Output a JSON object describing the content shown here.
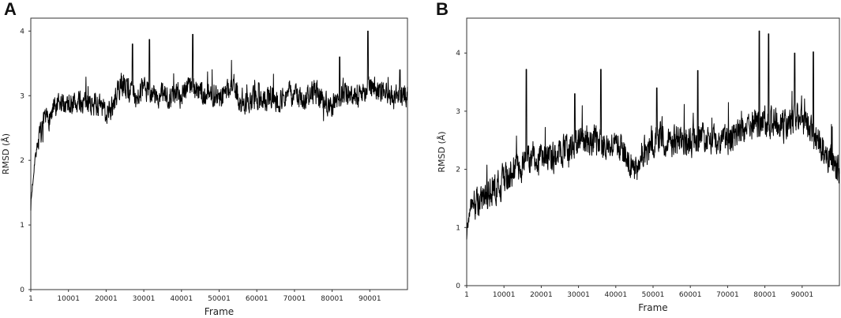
{
  "chart_data": [
    {
      "panel": "A",
      "type": "line",
      "xlabel": "Frame",
      "ylabel": "RMSD (Å)",
      "xlim": [
        1,
        100001
      ],
      "ylim": [
        0,
        4.2
      ],
      "xticks": [
        1,
        10001,
        20001,
        30001,
        40001,
        50001,
        60001,
        70001,
        80001,
        90001
      ],
      "xtick_labels": [
        "1",
        "10001",
        "20001",
        "30001",
        "40001",
        "50001",
        "60001",
        "70001",
        "80001",
        "90001"
      ],
      "yticks": [
        0,
        1,
        2,
        3,
        4
      ],
      "ytick_labels": [
        "0",
        "1",
        "2",
        "3",
        "4"
      ],
      "grid": false,
      "series": [
        {
          "color": "#000000",
          "x": [
            1,
            1000,
            2000,
            4000,
            6000,
            8000,
            10001,
            12000,
            15000,
            18000,
            20001,
            22000,
            24000,
            26000,
            28000,
            30001,
            32000,
            34000,
            36000,
            38000,
            40001,
            42000,
            44000,
            46000,
            48000,
            50001,
            52000,
            54000,
            56000,
            58000,
            60001,
            62000,
            64000,
            66000,
            68000,
            70001,
            72000,
            74000,
            76000,
            78000,
            80001,
            82000,
            84000,
            86000,
            88000,
            90001,
            92000,
            94000,
            96000,
            98000,
            100001
          ],
          "values": [
            1.3,
            2.0,
            2.3,
            2.6,
            2.75,
            2.85,
            2.9,
            2.88,
            2.9,
            2.85,
            2.75,
            2.85,
            3.2,
            3.1,
            3.0,
            3.1,
            3.05,
            2.95,
            3.0,
            3.0,
            3.05,
            3.2,
            3.1,
            3.0,
            3.05,
            2.95,
            3.1,
            3.15,
            2.85,
            2.95,
            2.9,
            2.95,
            3.0,
            2.9,
            3.05,
            3.0,
            2.95,
            3.0,
            3.05,
            2.9,
            2.85,
            3.0,
            3.05,
            3.0,
            3.05,
            3.15,
            3.1,
            3.0,
            2.95,
            3.0,
            3.0
          ],
          "peaks": [
            [
              27000,
              3.8
            ],
            [
              31500,
              3.87
            ],
            [
              43000,
              3.95
            ],
            [
              89500,
              4.0
            ],
            [
              60500,
              3.2
            ],
            [
              82000,
              3.6
            ],
            [
              98000,
              3.4
            ]
          ]
        }
      ]
    },
    {
      "panel": "B",
      "type": "line",
      "xlabel": "Frame",
      "ylabel": "RMSD (Å)",
      "xlim": [
        1,
        100001
      ],
      "ylim": [
        0,
        4.6
      ],
      "xticks": [
        1,
        10001,
        20001,
        30001,
        40001,
        50001,
        60001,
        70001,
        80001,
        90001
      ],
      "xtick_labels": [
        "1",
        "10001",
        "20001",
        "30001",
        "40001",
        "50001",
        "60001",
        "70001",
        "80001",
        "90001"
      ],
      "yticks": [
        0,
        1,
        2,
        3,
        4
      ],
      "ytick_labels": [
        "0",
        "1",
        "2",
        "3",
        "4"
      ],
      "grid": false,
      "series": [
        {
          "color": "#000000",
          "x": [
            1,
            1000,
            3000,
            6000,
            9000,
            12000,
            15000,
            18000,
            20001,
            23000,
            26000,
            29000,
            32000,
            35000,
            38000,
            40001,
            43000,
            45000,
            48000,
            50001,
            53000,
            56000,
            59000,
            62000,
            65000,
            68000,
            70001,
            73000,
            76000,
            79000,
            82000,
            85000,
            88000,
            91000,
            94000,
            97000,
            100001
          ],
          "values": [
            0.9,
            1.4,
            1.45,
            1.55,
            1.75,
            1.95,
            2.1,
            2.15,
            2.2,
            2.2,
            2.3,
            2.45,
            2.5,
            2.5,
            2.4,
            2.5,
            2.2,
            1.95,
            2.35,
            2.5,
            2.55,
            2.5,
            2.45,
            2.55,
            2.5,
            2.45,
            2.5,
            2.6,
            2.75,
            2.85,
            2.8,
            2.75,
            2.9,
            2.8,
            2.5,
            2.2,
            2.05
          ],
          "peaks": [
            [
              16000,
              3.72
            ],
            [
              36000,
              3.72
            ],
            [
              62000,
              3.7
            ],
            [
              78500,
              4.38
            ],
            [
              81000,
              4.33
            ],
            [
              88000,
              4.0
            ],
            [
              93000,
              4.02
            ],
            [
              29000,
              3.3
            ],
            [
              51000,
              3.4
            ]
          ]
        }
      ]
    }
  ]
}
